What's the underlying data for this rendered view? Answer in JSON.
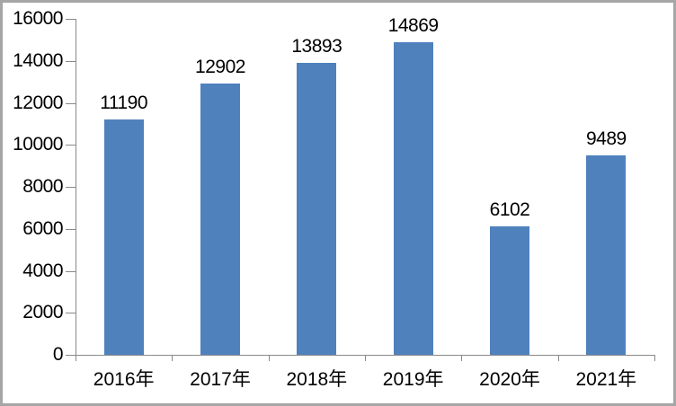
{
  "chart_data": {
    "type": "bar",
    "title": "",
    "xlabel": "",
    "ylabel": "",
    "categories": [
      "2016年",
      "2017年",
      "2018年",
      "2019年",
      "2020年",
      "2021年"
    ],
    "values": [
      11190,
      12902,
      13893,
      14869,
      6102,
      9489
    ],
    "data_labels": [
      "11190",
      "12902",
      "13893",
      "14869",
      "6102",
      "9489"
    ],
    "ylim": [
      0,
      16000
    ],
    "ytick_interval": 2000,
    "yticks": [
      0,
      2000,
      4000,
      6000,
      8000,
      10000,
      12000,
      14000,
      16000
    ],
    "grid": false,
    "legend": null,
    "colors": {
      "bar": "#4F81BD",
      "axis": "#898989",
      "text": "#000000",
      "background": "#FFFFFF",
      "frame_border": "#A6A6A6"
    }
  }
}
